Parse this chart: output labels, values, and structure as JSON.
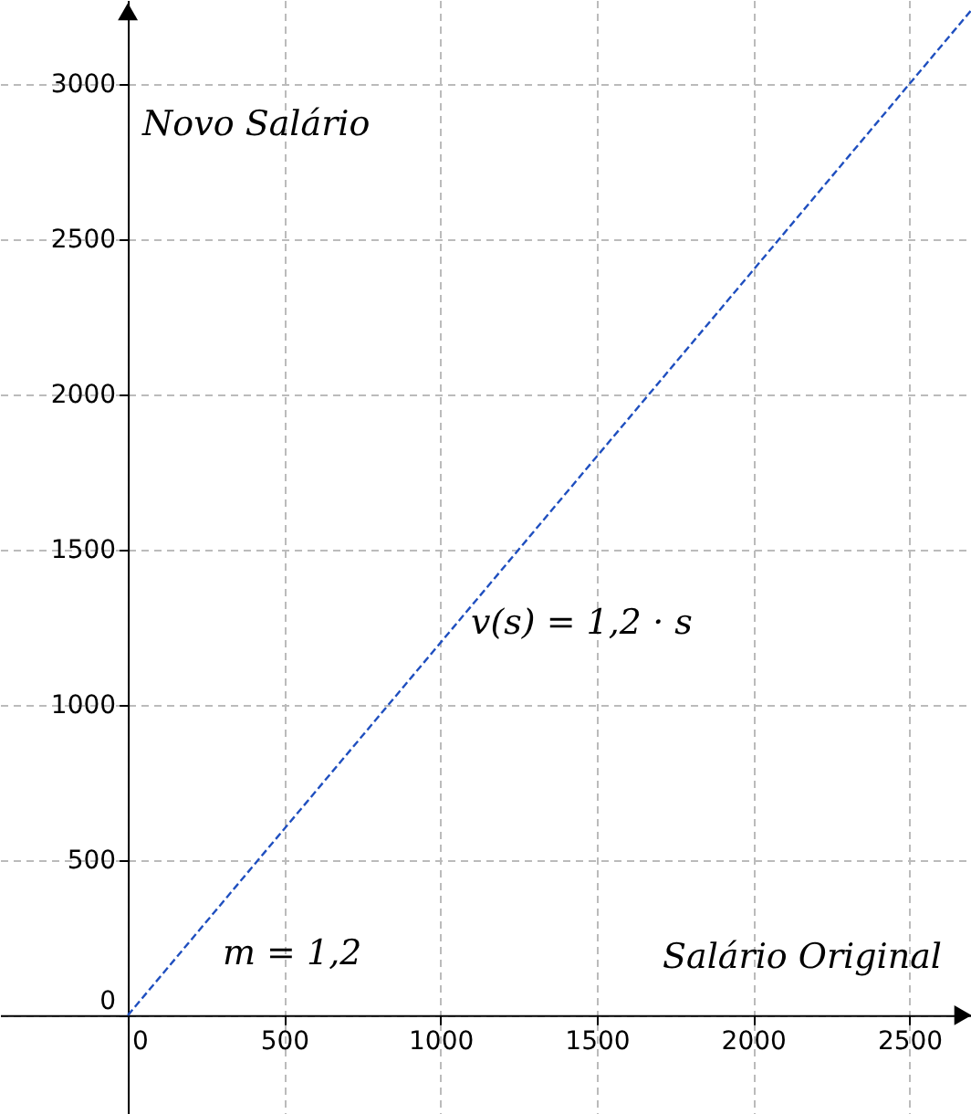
{
  "chart_data": {
    "type": "line",
    "xlabel": "Salário Original",
    "ylabel": "Novo Salário",
    "x": [
      0,
      2697
    ],
    "series": [
      {
        "color": "#1f4fbf",
        "values": [
          0,
          3236
        ],
        "line_style": "dashed"
      }
    ],
    "xlim": [
      -409,
      2697
    ],
    "ylim": [
      -318,
      3270
    ],
    "xticks": [
      0,
      500,
      1000,
      1500,
      2000,
      2500
    ],
    "yticks": [
      0,
      500,
      1000,
      1500,
      2000,
      2500,
      3000
    ],
    "grid": true,
    "marker": "none",
    "annotations": [
      "v(s) = 1,2 · s",
      "m = 1,2"
    ]
  }
}
